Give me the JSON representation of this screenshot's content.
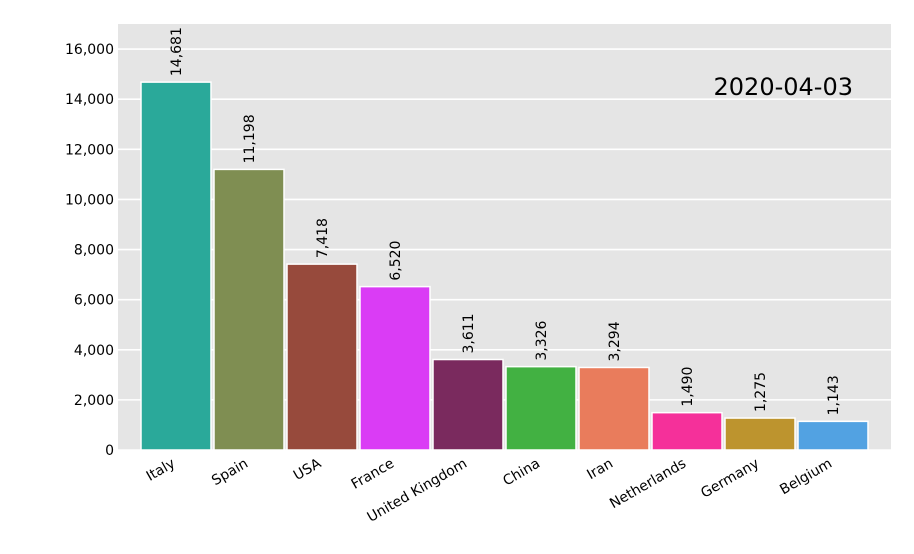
{
  "chart_data": {
    "type": "bar",
    "title": "",
    "xlabel": "",
    "ylabel": "",
    "annotation": "2020-04-03",
    "categories": [
      "Italy",
      "Spain",
      "USA",
      "France",
      "United Kingdom",
      "China",
      "Iran",
      "Netherlands",
      "Germany",
      "Belgium"
    ],
    "values": [
      14681,
      11198,
      7418,
      6520,
      3611,
      3326,
      3294,
      1490,
      1275,
      1143
    ],
    "value_labels": [
      "14,681",
      "11,198",
      "7,418",
      "6,520",
      "3,611",
      "3,326",
      "3,294",
      "1,490",
      "1,275",
      "1,143"
    ],
    "colors": [
      "#2aa99a",
      "#7f8e52",
      "#974a3c",
      "#da3cf5",
      "#7a2a5e",
      "#42b142",
      "#e97c5c",
      "#f5309a",
      "#bd942e",
      "#52a2e2"
    ],
    "ylim": [
      0,
      17000
    ],
    "yticks": [
      0,
      2000,
      4000,
      6000,
      8000,
      10000,
      12000,
      14000,
      16000
    ],
    "ytick_labels": [
      "0",
      "2,000",
      "4,000",
      "6,000",
      "8,000",
      "10,000",
      "12,000",
      "14,000",
      "16,000"
    ],
    "grid": true,
    "background": "#e5e5e5"
  }
}
